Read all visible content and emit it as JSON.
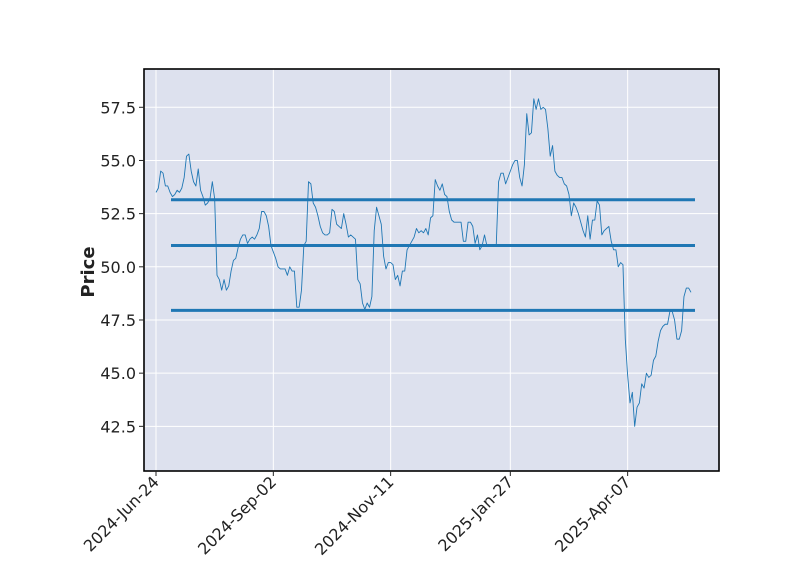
{
  "chart_data": {
    "type": "line",
    "title": "",
    "xlabel": "",
    "ylabel": "Price",
    "x_tick_labels": [
      "2024-Jun-24",
      "2024-Sep-02",
      "2024-Nov-11",
      "2025-Jan-27",
      "2025-Apr-07"
    ],
    "y_tick_labels": [
      "42.5",
      "45.0",
      "47.5",
      "50.0",
      "52.5",
      "55.0",
      "57.5"
    ],
    "y_ticks": [
      42.5,
      45.0,
      47.5,
      50.0,
      52.5,
      55.0,
      57.5
    ],
    "ylim": [
      40.4,
      59.3
    ],
    "grid": true,
    "background": "#dde1ee",
    "price_color": "#1f77b4",
    "level_color": "#1f77b4",
    "horizontal_levels": [
      53.15,
      51.0,
      47.95
    ],
    "series": [
      {
        "values": [
          53.5,
          53.7,
          54.5,
          54.4,
          53.8,
          53.8,
          53.5,
          53.3,
          53.4,
          53.6,
          53.5,
          53.7,
          54.2,
          55.2,
          55.3,
          54.5,
          54.0,
          53.8,
          54.6,
          53.6,
          53.3,
          52.9,
          53.0,
          53.2,
          54.0,
          53.2,
          49.6,
          49.4,
          48.9,
          49.4,
          48.9,
          49.1,
          49.8,
          50.3,
          50.4,
          50.9,
          51.3,
          51.5,
          51.5,
          51.1,
          51.3,
          51.4,
          51.3,
          51.5,
          51.8,
          52.6,
          52.6,
          52.4,
          51.9,
          51.0,
          50.7,
          50.4,
          50.0,
          49.9,
          49.9,
          49.9,
          49.6,
          50.0,
          49.8,
          49.8,
          48.1,
          48.1,
          48.9,
          51.0,
          51.2,
          54.0,
          53.9,
          53.0,
          52.8,
          52.4,
          51.9,
          51.6,
          51.5,
          51.5,
          51.6,
          52.7,
          52.6,
          52.0,
          51.9,
          51.8,
          52.5,
          52.0,
          51.4,
          51.5,
          51.4,
          51.3,
          49.4,
          49.2,
          48.3,
          48.0,
          48.3,
          48.1,
          48.6,
          51.7,
          52.8,
          52.4,
          52.0,
          50.5,
          49.9,
          50.2,
          50.2,
          50.1,
          49.4,
          49.6,
          49.1,
          49.8,
          49.8,
          50.8,
          51.0,
          51.2,
          51.4,
          51.8,
          51.6,
          51.7,
          51.6,
          51.8,
          51.5,
          52.3,
          52.4,
          54.1,
          53.8,
          53.6,
          53.9,
          53.4,
          53.3,
          52.6,
          52.2,
          52.1,
          52.1,
          52.1,
          52.1,
          51.2,
          51.2,
          52.1,
          52.1,
          51.9,
          51.1,
          51.5,
          50.8,
          51.0,
          51.5,
          51.0,
          51.0,
          51.0,
          51.0,
          51.0,
          54.0,
          54.4,
          54.4,
          53.9,
          54.2,
          54.5,
          54.8,
          55.0,
          55.0,
          54.2,
          53.8,
          54.8,
          57.2,
          56.2,
          56.3,
          57.9,
          57.4,
          57.9,
          57.4,
          57.5,
          57.4,
          56.5,
          55.2,
          55.7,
          54.5,
          54.3,
          54.2,
          54.2,
          53.9,
          53.8,
          53.4,
          52.4,
          53.0,
          52.8,
          52.5,
          52.1,
          51.7,
          51.4,
          52.4,
          51.3,
          52.2,
          52.2,
          53.1,
          52.9,
          51.5,
          51.7,
          51.8,
          51.9,
          51.2,
          50.8,
          50.8,
          50.0,
          50.2,
          50.1,
          46.6,
          44.9,
          43.6,
          44.1,
          42.5,
          43.4,
          43.6,
          44.5,
          44.3,
          45.0,
          44.8,
          44.9,
          45.6,
          45.8,
          46.5,
          47.0,
          47.2,
          47.3,
          47.3,
          47.9,
          47.9,
          47.5,
          46.6,
          46.6,
          47.0,
          48.6,
          49.0,
          49.0,
          48.8
        ]
      }
    ]
  }
}
